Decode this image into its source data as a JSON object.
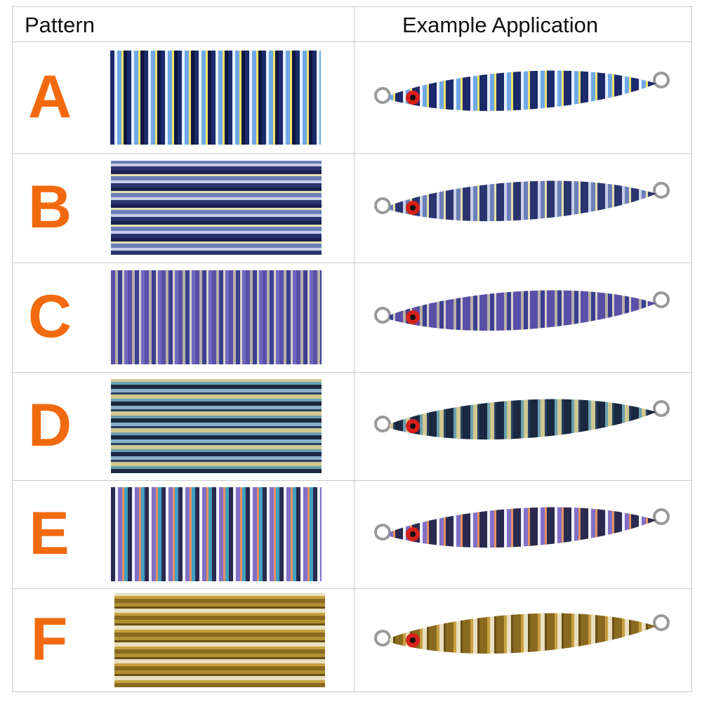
{
  "header": {
    "pattern": "Pattern",
    "example": "Example Application"
  },
  "accent_color": "#f26a10",
  "rows": [
    {
      "label": "A",
      "colors": [
        "#1b2a6b",
        "#e8f0ff",
        "#6fa8e8",
        "#f4e36a",
        "#0d1640"
      ]
    },
    {
      "label": "B",
      "colors": [
        "#2a3570",
        "#c8d0e8",
        "#6b7fb8",
        "#e8e0b0",
        "#1a2050"
      ]
    },
    {
      "label": "C",
      "colors": [
        "#5a4fa8",
        "#b8b0a8",
        "#3a3f90",
        "#d8d0c8",
        "#7068c0"
      ]
    },
    {
      "label": "D",
      "colors": [
        "#1a2840",
        "#6aa0b0",
        "#d0c890",
        "#2a4060",
        "#8ab0c8"
      ]
    },
    {
      "label": "E",
      "colors": [
        "#2a2a50",
        "#f0f0f8",
        "#8070c8",
        "#e89060",
        "#40a0c0"
      ]
    },
    {
      "label": "F",
      "colors": [
        "#8a6a20",
        "#c8a040",
        "#e8e0c0",
        "#6a5018",
        "#b09030"
      ]
    }
  ]
}
